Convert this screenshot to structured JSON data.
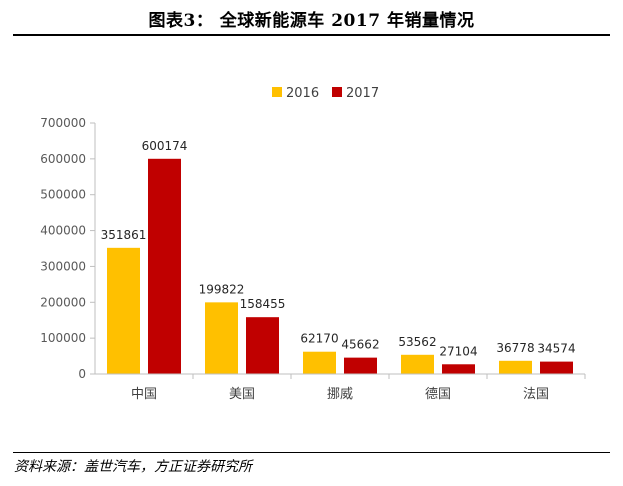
{
  "header": {
    "title": "图表3：   全球新能源车 2017 年销量情况"
  },
  "footer": {
    "source": "资料来源：盖世汽车，方正证券研究所"
  },
  "chart_data": {
    "type": "bar",
    "title": "",
    "xlabel": "",
    "ylabel": "",
    "categories": [
      "中国",
      "美国",
      "挪威",
      "德国",
      "法国"
    ],
    "series": [
      {
        "name": "2016",
        "values": [
          351861,
          199822,
          62170,
          53562,
          36778
        ],
        "color": "#FFC000"
      },
      {
        "name": "2017",
        "values": [
          600174,
          158455,
          45662,
          27104,
          34574
        ],
        "color": "#C00000"
      }
    ],
    "ylim": [
      0,
      700000
    ],
    "yticks": [
      0,
      100000,
      200000,
      300000,
      400000,
      500000,
      600000,
      700000
    ],
    "grid": false,
    "legend": "top"
  }
}
